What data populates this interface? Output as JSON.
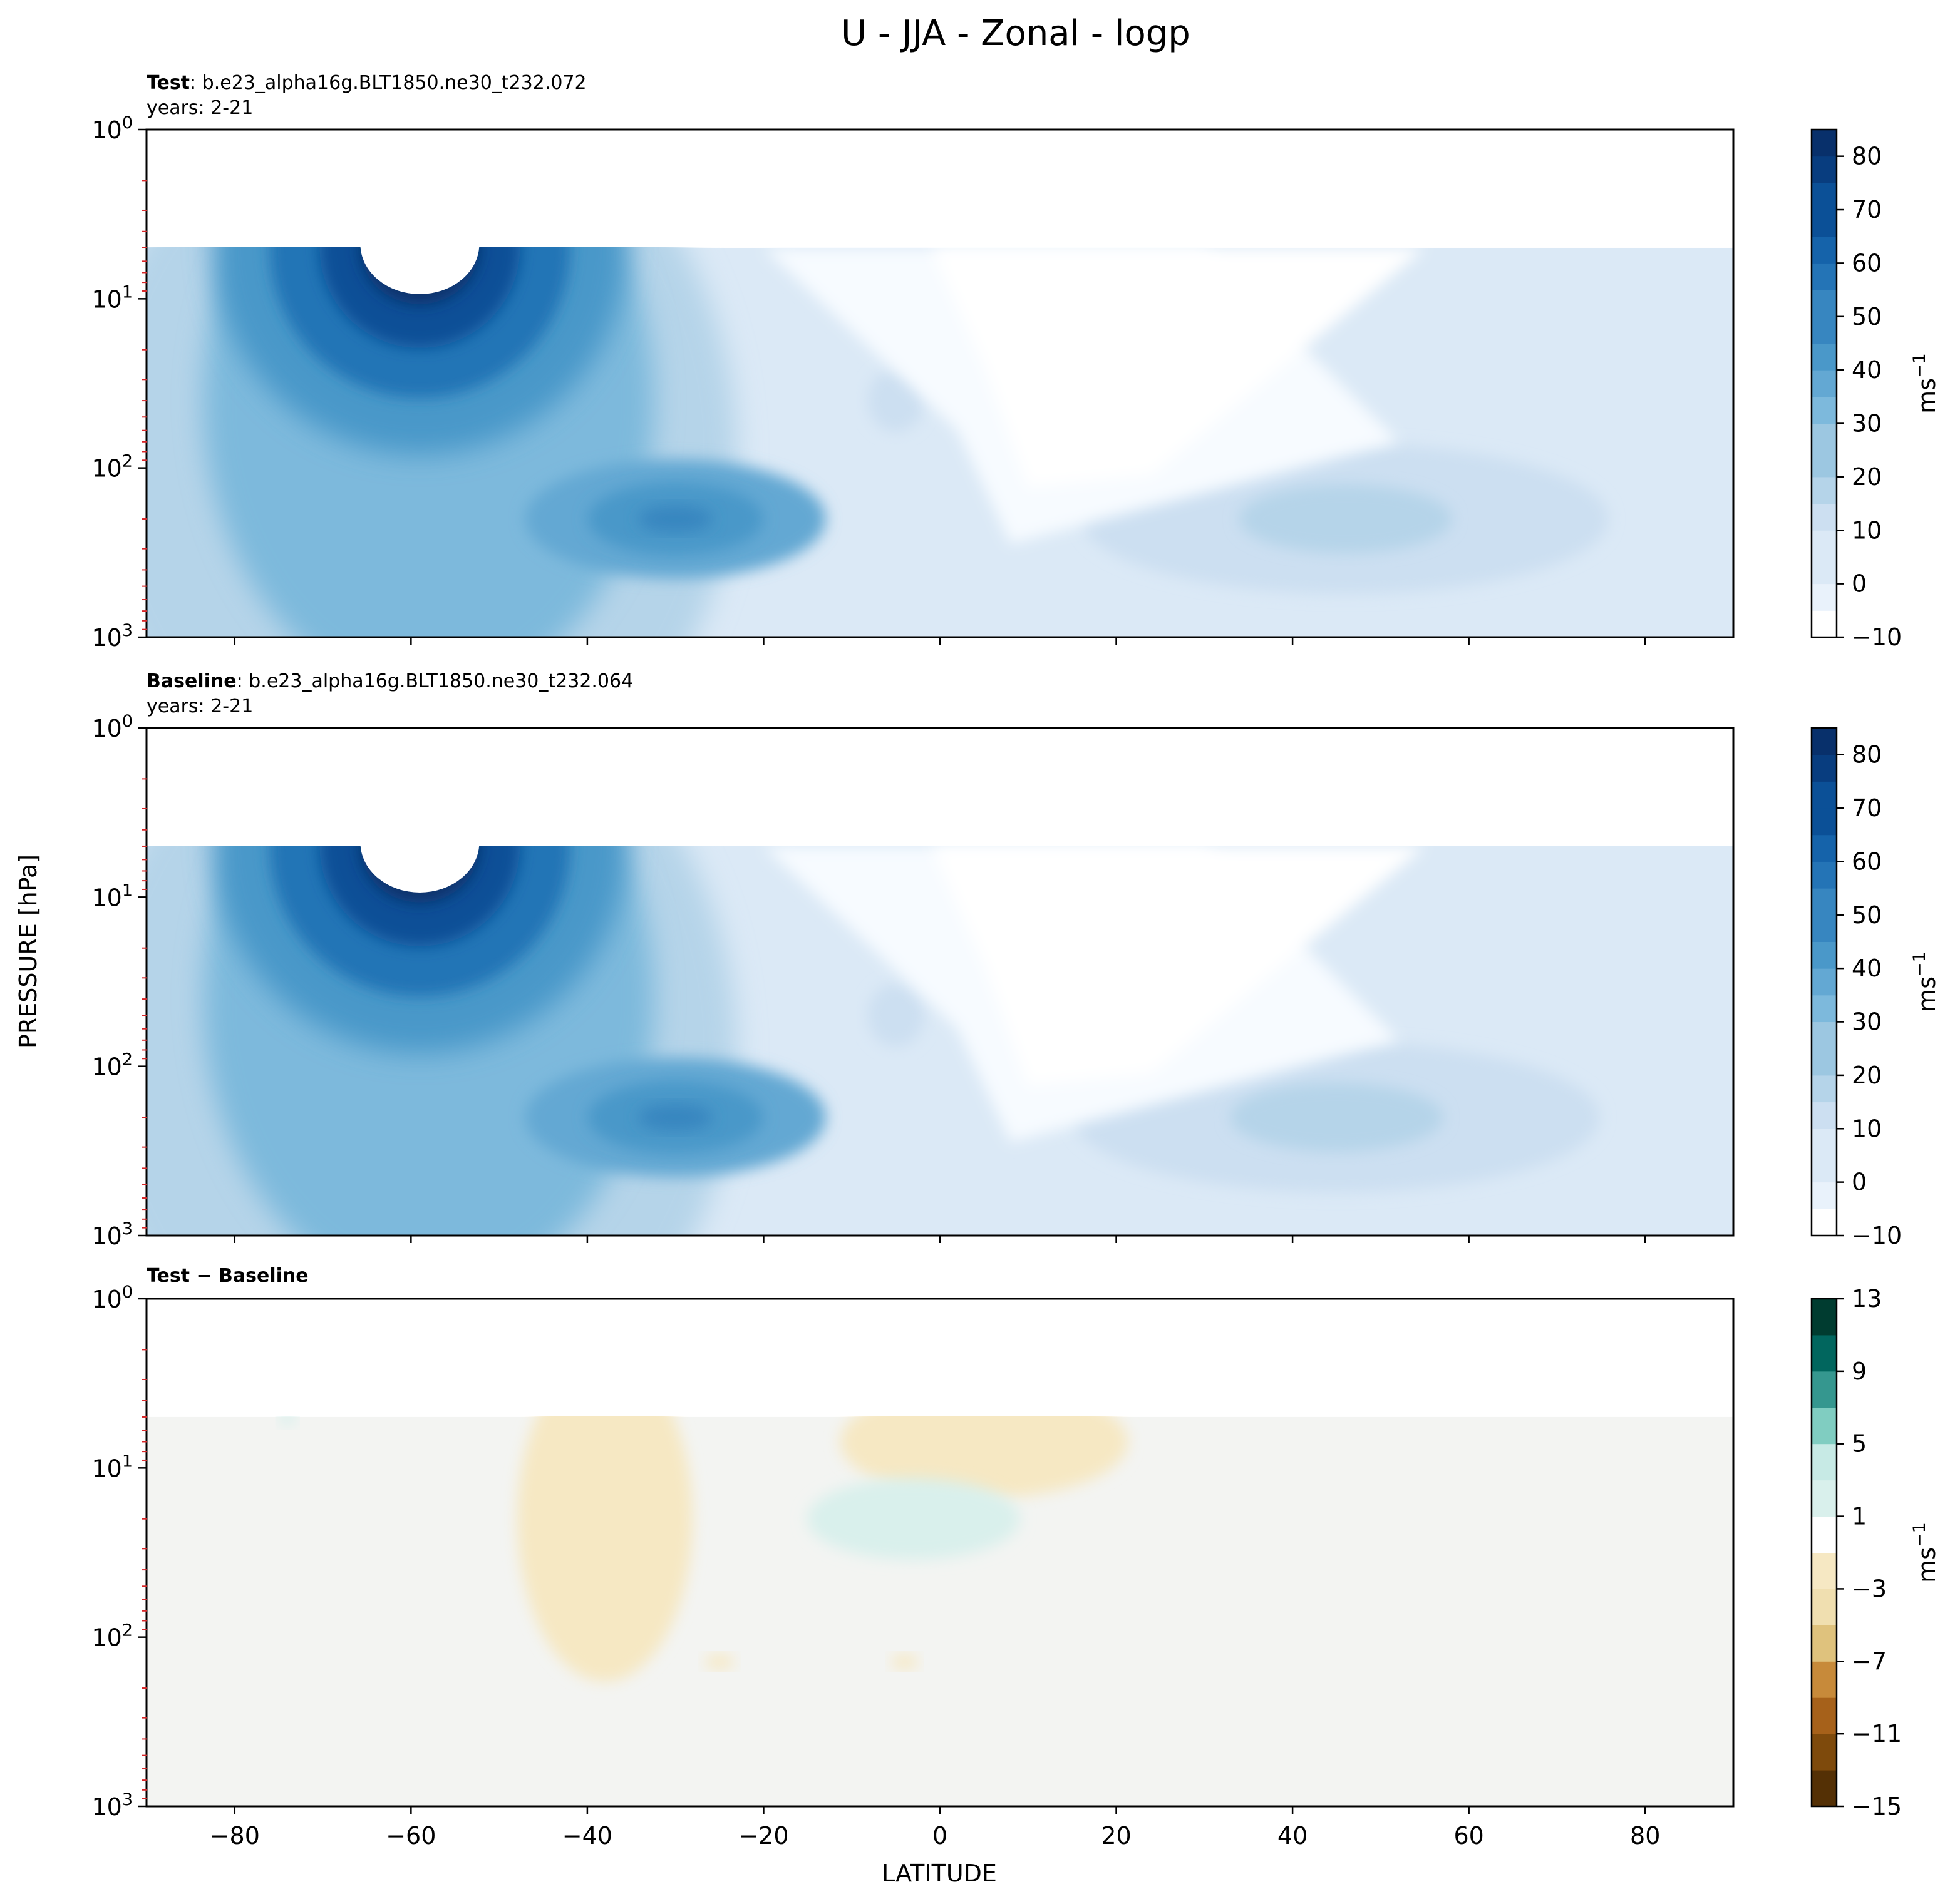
{
  "figure": {
    "title": "U - JJA - Zonal - logp",
    "xlabel": "LATITUDE",
    "ylabel": "PRESSURE [hPa]"
  },
  "colors": {
    "blues": [
      "#f7fbff",
      "#e9f2fb",
      "#dbe9f6",
      "#ccdff1",
      "#b5d4e9",
      "#9cc7e1",
      "#7db9dc",
      "#63a8d3",
      "#4a98c9",
      "#3786c0",
      "#2474b6",
      "#1563aa",
      "#0b5097",
      "#083d7f",
      "#08306b"
    ],
    "brbg": [
      "#543005",
      "#7e4a0c",
      "#a6611a",
      "#c78a3a",
      "#dfc27d",
      "#f0dfb0",
      "#f6e8c3",
      "#f5f5f5",
      "#d9f0ec",
      "#c7eae5",
      "#80cdc1",
      "#35978f",
      "#01665e",
      "#003c30"
    ],
    "diff_background": "#f3f4f2",
    "pressure_minor_tick": "#d62728"
  },
  "chart_data": [
    {
      "name": "Test",
      "type": "contourf",
      "header_bold": "Test",
      "header_text": ": b.e23_alpha16g.BLT1850.ne30_t232.072",
      "years_text": "years: 2-21",
      "x_range": [
        -90,
        90
      ],
      "y_range_hPa": [
        1000,
        1
      ],
      "y_scale": "log",
      "data_top_hPa": 5,
      "x_ticks": [
        -80,
        -60,
        -40,
        -20,
        0,
        20,
        40,
        60,
        80
      ],
      "y_ticks": [
        1,
        10,
        100,
        1000
      ],
      "y_tick_labels": [
        "10^0",
        "10^1",
        "10^2",
        "10^3"
      ],
      "colorbar": {
        "levels": [
          -10,
          -5,
          0,
          5,
          10,
          15,
          20,
          25,
          30,
          35,
          40,
          45,
          50,
          55,
          60,
          65,
          70,
          75,
          80,
          85
        ],
        "ticks": [
          -10,
          0,
          10,
          20,
          30,
          40,
          50,
          60,
          70,
          80
        ],
        "tick_labels": [
          "−10",
          "0",
          "10",
          "20",
          "30",
          "40",
          "50",
          "60",
          "70",
          "80"
        ],
        "unit": "ms^-1"
      },
      "features": [
        {
          "description": "southern polar night jet",
          "lat": -59,
          "p_hPa": 10,
          "max": 85
        },
        {
          "description": "southern subtropical jet",
          "lat": -30,
          "p_hPa": 200,
          "max": 45
        },
        {
          "description": "northern jet",
          "lat": 46,
          "p_hPa": 200,
          "max": 25
        },
        {
          "description": "secondary maximum",
          "lat": -5,
          "p_hPa": 40,
          "max": 20
        },
        {
          "description": "tropical easterlies / weak winds",
          "lat": 20,
          "p_hPa": 30,
          "max": -5
        }
      ]
    },
    {
      "name": "Baseline",
      "type": "contourf",
      "header_bold": "Baseline",
      "header_text": ": b.e23_alpha16g.BLT1850.ne30_t232.064",
      "years_text": "years: 2-21",
      "x_range": [
        -90,
        90
      ],
      "y_range_hPa": [
        1000,
        1
      ],
      "y_scale": "log",
      "data_top_hPa": 5,
      "x_ticks": [
        -80,
        -60,
        -40,
        -20,
        0,
        20,
        40,
        60,
        80
      ],
      "y_ticks": [
        1,
        10,
        100,
        1000
      ],
      "y_tick_labels": [
        "10^0",
        "10^1",
        "10^2",
        "10^3"
      ],
      "colorbar": {
        "levels": [
          -10,
          -5,
          0,
          5,
          10,
          15,
          20,
          25,
          30,
          35,
          40,
          45,
          50,
          55,
          60,
          65,
          70,
          75,
          80,
          85
        ],
        "ticks": [
          -10,
          0,
          10,
          20,
          30,
          40,
          50,
          60,
          70,
          80
        ],
        "tick_labels": [
          "−10",
          "0",
          "10",
          "20",
          "30",
          "40",
          "50",
          "60",
          "70",
          "80"
        ],
        "unit": "ms^-1"
      },
      "features": [
        {
          "description": "southern polar night jet",
          "lat": -59,
          "p_hPa": 10,
          "max": 85
        },
        {
          "description": "southern subtropical jet",
          "lat": -30,
          "p_hPa": 200,
          "max": 45
        },
        {
          "description": "northern jet",
          "lat": 45,
          "p_hPa": 200,
          "max": 25
        },
        {
          "description": "secondary maximum",
          "lat": -5,
          "p_hPa": 50,
          "max": 20
        },
        {
          "description": "tropical easterlies / weak winds",
          "lat": 20,
          "p_hPa": 30,
          "max": -5
        }
      ]
    },
    {
      "name": "Test − Baseline",
      "type": "contourf",
      "header_bold": "Test − Baseline",
      "x_range": [
        -90,
        90
      ],
      "y_range_hPa": [
        1000,
        1
      ],
      "y_scale": "log",
      "data_top_hPa": 5,
      "x_ticks": [
        -80,
        -60,
        -40,
        -20,
        0,
        20,
        40,
        60,
        80
      ],
      "y_ticks": [
        1,
        10,
        100,
        1000
      ],
      "y_tick_labels": [
        "10^0",
        "10^1",
        "10^2",
        "10^3"
      ],
      "colorbar": {
        "levels": [
          -15,
          -13,
          -11,
          -9,
          -7,
          -5,
          -3,
          -1,
          1,
          3,
          5,
          7,
          9,
          11,
          13
        ],
        "ticks": [
          -15,
          -11,
          -7,
          -3,
          1,
          5,
          9,
          13
        ],
        "tick_labels": [
          "−15",
          "−11",
          "−7",
          "−3",
          "1",
          "5",
          "9",
          "13"
        ],
        "unit": "ms^-1"
      },
      "features": [
        {
          "description": "negative difference region",
          "lat": -38,
          "p_hPa": 20,
          "range": [
            -3,
            -1
          ]
        },
        {
          "description": "negative difference region",
          "lat": 5,
          "p_hPa": 7,
          "range": [
            -3,
            -1
          ]
        },
        {
          "description": "positive difference region",
          "lat": -3,
          "p_hPa": 20,
          "range": [
            1,
            3
          ]
        },
        {
          "description": "positive difference spot",
          "lat": -74,
          "p_hPa": 5,
          "range": [
            1,
            3
          ]
        },
        {
          "description": "small negative spot",
          "lat": -25,
          "p_hPa": 140,
          "range": [
            -3,
            -1
          ]
        },
        {
          "description": "small negative spot",
          "lat": -4,
          "p_hPa": 140,
          "range": [
            -3,
            -1
          ]
        }
      ]
    }
  ]
}
